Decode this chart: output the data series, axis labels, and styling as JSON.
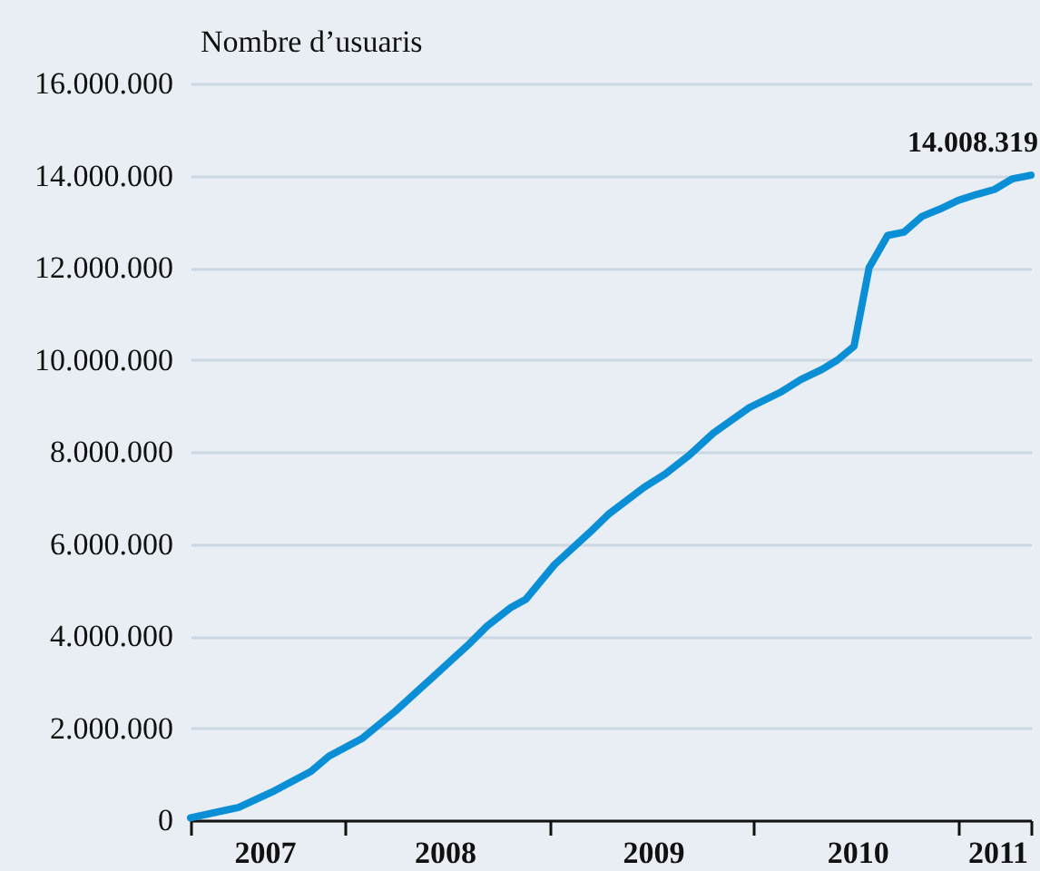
{
  "chart_data": {
    "type": "line",
    "ylabel": "Nombre d’usuaris",
    "x": [
      "2007-04-01",
      "2007-06-26",
      "2007-08-29",
      "2007-11-02",
      "2007-12-04",
      "2008-02-02",
      "2008-04-01",
      "2008-06-06",
      "2008-08-10",
      "2008-09-11",
      "2008-10-23",
      "2008-11-20",
      "2009-01-10",
      "2009-03-14",
      "2009-04-16",
      "2009-06-19",
      "2009-07-27",
      "2009-09-08",
      "2009-10-21",
      "2009-12-24",
      "2010-02-17",
      "2010-03-26",
      "2010-05-03",
      "2010-05-30",
      "2010-06-29",
      "2010-07-26",
      "2010-08-28",
      "2010-09-26",
      "2010-10-28",
      "2010-11-29",
      "2011-01-01",
      "2011-02-03",
      "2011-03-07",
      "2011-04-08",
      "2011-05-11"
    ],
    "series": [
      {
        "color": "#0a8fd6",
        "values": [
          50000,
          280000,
          640000,
          1060000,
          1390000,
          1780000,
          2370000,
          3100000,
          3820000,
          4210000,
          4610000,
          4800000,
          5550000,
          6250000,
          6640000,
          7230000,
          7520000,
          7930000,
          8410000,
          8960000,
          9290000,
          9570000,
          9790000,
          9990000,
          10290000,
          12000000,
          12700000,
          12770000,
          13110000,
          13270000,
          13460000,
          13590000,
          13700000,
          13930000,
          14008319
        ]
      }
    ],
    "xlim": [
      "2007-04-01",
      "2011-05-11"
    ],
    "xticks": [
      {
        "value": "2007-04-01",
        "label": null
      },
      {
        "value": "2007-08-11",
        "label": "2007"
      },
      {
        "value": "2008-01-01",
        "label": null
      },
      {
        "value": "2008-06-28",
        "label": "2008"
      },
      {
        "value": "2009-01-01",
        "label": null
      },
      {
        "value": "2009-07-05",
        "label": "2009"
      },
      {
        "value": "2010-01-01",
        "label": null
      },
      {
        "value": "2010-07-05",
        "label": "2010"
      },
      {
        "value": "2011-01-01",
        "label": null
      },
      {
        "value": "2011-03-12",
        "label": "2011"
      },
      {
        "value": "2011-05-11",
        "label": null
      }
    ],
    "ylim": [
      0,
      16000000
    ],
    "yticks": [
      {
        "value": 0,
        "label": "0"
      },
      {
        "value": 2000000,
        "label": "2.000.000"
      },
      {
        "value": 4000000,
        "label": "4.000.000"
      },
      {
        "value": 6000000,
        "label": "6.000.000"
      },
      {
        "value": 8000000,
        "label": "8.000.000"
      },
      {
        "value": 10000000,
        "label": "10.000.000"
      },
      {
        "value": 12000000,
        "label": "12.000.000"
      },
      {
        "value": 14000000,
        "label": "14.000.000"
      },
      {
        "value": 16000000,
        "label": "16.000.000"
      }
    ],
    "grid": "y",
    "line_style": "solid",
    "annotations": [
      {
        "text": "14.008.319",
        "x": "2011-05-11",
        "y": 14008319
      }
    ]
  }
}
